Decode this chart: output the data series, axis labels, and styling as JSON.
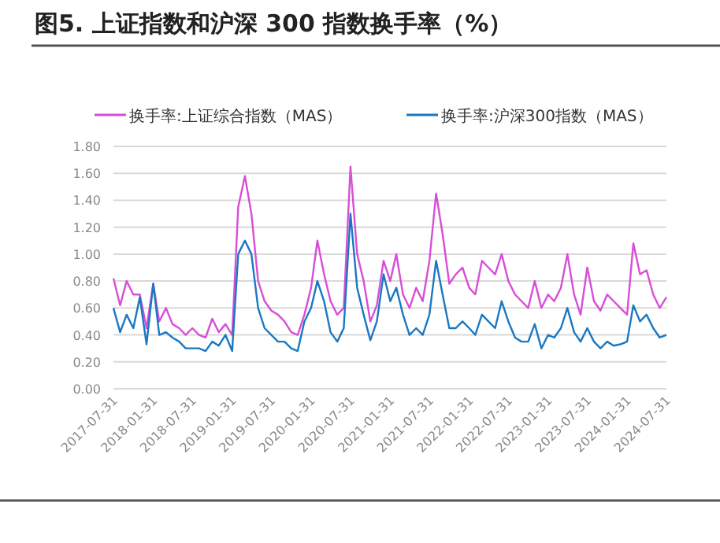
{
  "chart_data": {
    "type": "line",
    "title": "图5. 上证指数和沪深 300 指数换手率（%）",
    "x": [
      "2017-07-31",
      "2017-08-31",
      "2017-09-30",
      "2017-10-31",
      "2017-11-30",
      "2017-12-31",
      "2018-01-31",
      "2018-02-28",
      "2018-03-31",
      "2018-04-30",
      "2018-05-31",
      "2018-06-30",
      "2018-07-31",
      "2018-08-31",
      "2018-09-30",
      "2018-10-31",
      "2018-11-30",
      "2018-12-31",
      "2019-01-31",
      "2019-02-28",
      "2019-03-31",
      "2019-04-30",
      "2019-05-31",
      "2019-06-30",
      "2019-07-31",
      "2019-08-31",
      "2019-09-30",
      "2019-10-31",
      "2019-11-30",
      "2019-12-31",
      "2020-01-31",
      "2020-02-29",
      "2020-03-31",
      "2020-04-30",
      "2020-05-31",
      "2020-06-30",
      "2020-07-31",
      "2020-08-31",
      "2020-09-30",
      "2020-10-31",
      "2020-11-30",
      "2020-12-31",
      "2021-01-31",
      "2021-02-28",
      "2021-03-31",
      "2021-04-30",
      "2021-05-31",
      "2021-06-30",
      "2021-07-31",
      "2021-08-31",
      "2021-09-30",
      "2021-10-31",
      "2021-11-30",
      "2021-12-31",
      "2022-01-31",
      "2022-02-28",
      "2022-03-31",
      "2022-04-30",
      "2022-05-31",
      "2022-06-30",
      "2022-07-31",
      "2022-08-31",
      "2022-09-30",
      "2022-10-31",
      "2022-11-30",
      "2022-12-31",
      "2023-01-31",
      "2023-02-28",
      "2023-03-31",
      "2023-04-30",
      "2023-05-31",
      "2023-06-30",
      "2023-07-31",
      "2023-08-31",
      "2023-09-30",
      "2023-10-31",
      "2023-11-30",
      "2023-12-31",
      "2024-01-31",
      "2024-02-29",
      "2024-03-31",
      "2024-04-30",
      "2024-05-31",
      "2024-06-30",
      "2024-07-31"
    ],
    "series": [
      {
        "name": "换手率:上证综合指数（MAS）",
        "color": "#d84ed8",
        "values": [
          0.82,
          0.62,
          0.8,
          0.7,
          0.7,
          0.45,
          0.78,
          0.5,
          0.6,
          0.48,
          0.45,
          0.4,
          0.45,
          0.4,
          0.38,
          0.52,
          0.42,
          0.48,
          0.4,
          1.35,
          1.58,
          1.3,
          0.8,
          0.65,
          0.58,
          0.55,
          0.5,
          0.42,
          0.4,
          0.55,
          0.75,
          1.1,
          0.85,
          0.65,
          0.55,
          0.6,
          1.65,
          1.0,
          0.8,
          0.5,
          0.62,
          0.95,
          0.8,
          1.0,
          0.7,
          0.6,
          0.75,
          0.65,
          0.95,
          1.45,
          1.15,
          0.78,
          0.85,
          0.9,
          0.75,
          0.7,
          0.95,
          0.9,
          0.85,
          1.0,
          0.8,
          0.7,
          0.65,
          0.6,
          0.8,
          0.6,
          0.7,
          0.65,
          0.75,
          1.0,
          0.7,
          0.55,
          0.9,
          0.65,
          0.58,
          0.7,
          0.65,
          0.6,
          0.55,
          1.08,
          0.85,
          0.88,
          0.7,
          0.6,
          0.68
        ]
      },
      {
        "name": "换手率:沪深300指数（MAS）",
        "color": "#1a78c2",
        "values": [
          0.6,
          0.42,
          0.55,
          0.45,
          0.68,
          0.33,
          0.78,
          0.4,
          0.42,
          0.38,
          0.35,
          0.3,
          0.3,
          0.3,
          0.28,
          0.35,
          0.32,
          0.4,
          0.28,
          1.0,
          1.1,
          1.0,
          0.6,
          0.45,
          0.4,
          0.35,
          0.35,
          0.3,
          0.28,
          0.5,
          0.6,
          0.8,
          0.65,
          0.42,
          0.35,
          0.45,
          1.3,
          0.75,
          0.55,
          0.36,
          0.5,
          0.85,
          0.65,
          0.75,
          0.55,
          0.4,
          0.45,
          0.4,
          0.55,
          0.95,
          0.7,
          0.45,
          0.45,
          0.5,
          0.45,
          0.4,
          0.55,
          0.5,
          0.45,
          0.65,
          0.5,
          0.38,
          0.35,
          0.35,
          0.48,
          0.3,
          0.4,
          0.38,
          0.45,
          0.6,
          0.42,
          0.35,
          0.45,
          0.35,
          0.3,
          0.35,
          0.32,
          0.33,
          0.35,
          0.62,
          0.5,
          0.55,
          0.45,
          0.38,
          0.4
        ]
      }
    ],
    "xlim": [
      "2017-07-31",
      "2024-07-31"
    ],
    "xticks": [
      "2017-07-31",
      "2018-01-31",
      "2018-07-31",
      "2019-01-31",
      "2019-07-31",
      "2020-01-31",
      "2020-07-31",
      "2021-01-31",
      "2021-07-31",
      "2022-01-31",
      "2022-07-31",
      "2023-01-31",
      "2023-07-31",
      "2024-01-31",
      "2024-07-31"
    ],
    "ylim": [
      0,
      1.8
    ],
    "yticks": [
      {
        "value": 0,
        "label": "0.00"
      },
      {
        "value": 0.2,
        "label": "0.20"
      },
      {
        "value": 0.4,
        "label": "0.40"
      },
      {
        "value": 0.6,
        "label": "0.60"
      },
      {
        "value": 0.8,
        "label": "0.80"
      },
      {
        "value": 1.0,
        "label": "1.00"
      },
      {
        "value": 1.2,
        "label": "1.20"
      },
      {
        "value": 1.4,
        "label": "1.40"
      },
      {
        "value": 1.6,
        "label": "1.60"
      },
      {
        "value": 1.8,
        "label": "1.80"
      }
    ],
    "grid": "y",
    "legend": "top"
  }
}
